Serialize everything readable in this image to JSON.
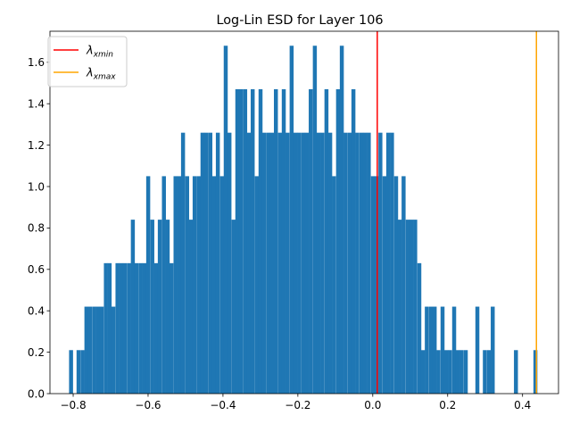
{
  "chart_data": {
    "type": "bar",
    "title": "Log-Lin ESD for Layer 106",
    "xlabel": "",
    "ylabel": "",
    "xlim": [
      -0.862,
      0.496
    ],
    "ylim": [
      0,
      1.75
    ],
    "bin_width": 0.0103,
    "bar_color": "#1f77b4",
    "x_ticks": [
      -0.8,
      -0.6,
      -0.4,
      -0.2,
      0.0,
      0.2,
      0.4
    ],
    "x_tick_labels": [
      "−0.8",
      "−0.6",
      "−0.4",
      "−0.2",
      "0.0",
      "0.2",
      "0.4"
    ],
    "y_ticks": [
      0.0,
      0.2,
      0.4,
      0.6,
      0.8,
      1.0,
      1.2,
      1.4,
      1.6
    ],
    "y_tick_labels": [
      "0.0",
      "0.2",
      "0.4",
      "0.6",
      "0.8",
      "1.0",
      "1.2",
      "1.4",
      "1.6"
    ],
    "bins": [
      {
        "x": -0.811,
        "y": 0.21
      },
      {
        "x": -0.801,
        "y": 0.0
      },
      {
        "x": -0.791,
        "y": 0.21
      },
      {
        "x": -0.78,
        "y": 0.21
      },
      {
        "x": -0.77,
        "y": 0.42
      },
      {
        "x": -0.76,
        "y": 0.42
      },
      {
        "x": -0.749,
        "y": 0.42
      },
      {
        "x": -0.739,
        "y": 0.42
      },
      {
        "x": -0.729,
        "y": 0.42
      },
      {
        "x": -0.718,
        "y": 0.63
      },
      {
        "x": -0.708,
        "y": 0.63
      },
      {
        "x": -0.698,
        "y": 0.42
      },
      {
        "x": -0.687,
        "y": 0.63
      },
      {
        "x": -0.677,
        "y": 0.63
      },
      {
        "x": -0.667,
        "y": 0.63
      },
      {
        "x": -0.656,
        "y": 0.63
      },
      {
        "x": -0.646,
        "y": 0.84
      },
      {
        "x": -0.636,
        "y": 0.63
      },
      {
        "x": -0.625,
        "y": 0.63
      },
      {
        "x": -0.615,
        "y": 0.63
      },
      {
        "x": -0.605,
        "y": 1.05
      },
      {
        "x": -0.594,
        "y": 0.84
      },
      {
        "x": -0.584,
        "y": 0.63
      },
      {
        "x": -0.574,
        "y": 0.84
      },
      {
        "x": -0.563,
        "y": 1.05
      },
      {
        "x": -0.553,
        "y": 0.84
      },
      {
        "x": -0.543,
        "y": 0.63
      },
      {
        "x": -0.532,
        "y": 1.05
      },
      {
        "x": -0.522,
        "y": 1.05
      },
      {
        "x": -0.512,
        "y": 1.26
      },
      {
        "x": -0.501,
        "y": 1.05
      },
      {
        "x": -0.491,
        "y": 0.84
      },
      {
        "x": -0.481,
        "y": 1.05
      },
      {
        "x": -0.47,
        "y": 1.05
      },
      {
        "x": -0.46,
        "y": 1.26
      },
      {
        "x": -0.45,
        "y": 1.26
      },
      {
        "x": -0.439,
        "y": 1.26
      },
      {
        "x": -0.429,
        "y": 1.05
      },
      {
        "x": -0.419,
        "y": 1.26
      },
      {
        "x": -0.408,
        "y": 1.05
      },
      {
        "x": -0.398,
        "y": 1.68
      },
      {
        "x": -0.388,
        "y": 1.26
      },
      {
        "x": -0.377,
        "y": 0.84
      },
      {
        "x": -0.367,
        "y": 1.47
      },
      {
        "x": -0.357,
        "y": 1.47
      },
      {
        "x": -0.346,
        "y": 1.47
      },
      {
        "x": -0.336,
        "y": 1.26
      },
      {
        "x": -0.326,
        "y": 1.47
      },
      {
        "x": -0.315,
        "y": 1.05
      },
      {
        "x": -0.305,
        "y": 1.47
      },
      {
        "x": -0.295,
        "y": 1.26
      },
      {
        "x": -0.284,
        "y": 1.26
      },
      {
        "x": -0.274,
        "y": 1.26
      },
      {
        "x": -0.264,
        "y": 1.47
      },
      {
        "x": -0.253,
        "y": 1.26
      },
      {
        "x": -0.243,
        "y": 1.47
      },
      {
        "x": -0.233,
        "y": 1.26
      },
      {
        "x": -0.222,
        "y": 1.68
      },
      {
        "x": -0.212,
        "y": 1.26
      },
      {
        "x": -0.202,
        "y": 1.26
      },
      {
        "x": -0.191,
        "y": 1.26
      },
      {
        "x": -0.181,
        "y": 1.26
      },
      {
        "x": -0.171,
        "y": 1.47
      },
      {
        "x": -0.16,
        "y": 1.68
      },
      {
        "x": -0.15,
        "y": 1.26
      },
      {
        "x": -0.14,
        "y": 1.26
      },
      {
        "x": -0.129,
        "y": 1.47
      },
      {
        "x": -0.119,
        "y": 1.26
      },
      {
        "x": -0.109,
        "y": 1.05
      },
      {
        "x": -0.098,
        "y": 1.47
      },
      {
        "x": -0.088,
        "y": 1.68
      },
      {
        "x": -0.078,
        "y": 1.26
      },
      {
        "x": -0.067,
        "y": 1.26
      },
      {
        "x": -0.057,
        "y": 1.47
      },
      {
        "x": -0.047,
        "y": 1.26
      },
      {
        "x": -0.036,
        "y": 1.26
      },
      {
        "x": -0.026,
        "y": 1.26
      },
      {
        "x": -0.016,
        "y": 1.26
      },
      {
        "x": -0.005,
        "y": 1.05
      },
      {
        "x": 0.005,
        "y": 1.05
      },
      {
        "x": 0.015,
        "y": 1.26
      },
      {
        "x": 0.026,
        "y": 1.05
      },
      {
        "x": 0.036,
        "y": 1.26
      },
      {
        "x": 0.046,
        "y": 1.26
      },
      {
        "x": 0.057,
        "y": 1.05
      },
      {
        "x": 0.067,
        "y": 0.84
      },
      {
        "x": 0.077,
        "y": 1.05
      },
      {
        "x": 0.088,
        "y": 0.84
      },
      {
        "x": 0.098,
        "y": 0.84
      },
      {
        "x": 0.108,
        "y": 0.84
      },
      {
        "x": 0.119,
        "y": 0.63
      },
      {
        "x": 0.129,
        "y": 0.21
      },
      {
        "x": 0.139,
        "y": 0.42
      },
      {
        "x": 0.15,
        "y": 0.42
      },
      {
        "x": 0.16,
        "y": 0.42
      },
      {
        "x": 0.17,
        "y": 0.21
      },
      {
        "x": 0.181,
        "y": 0.42
      },
      {
        "x": 0.191,
        "y": 0.21
      },
      {
        "x": 0.201,
        "y": 0.21
      },
      {
        "x": 0.212,
        "y": 0.42
      },
      {
        "x": 0.222,
        "y": 0.21
      },
      {
        "x": 0.232,
        "y": 0.21
      },
      {
        "x": 0.243,
        "y": 0.21
      },
      {
        "x": 0.253,
        "y": 0.0
      },
      {
        "x": 0.263,
        "y": 0.0
      },
      {
        "x": 0.274,
        "y": 0.42
      },
      {
        "x": 0.284,
        "y": 0.0
      },
      {
        "x": 0.294,
        "y": 0.21
      },
      {
        "x": 0.305,
        "y": 0.21
      },
      {
        "x": 0.315,
        "y": 0.42
      },
      {
        "x": 0.325,
        "y": 0.0
      },
      {
        "x": 0.336,
        "y": 0.0
      },
      {
        "x": 0.346,
        "y": 0.0
      },
      {
        "x": 0.356,
        "y": 0.0
      },
      {
        "x": 0.367,
        "y": 0.0
      },
      {
        "x": 0.377,
        "y": 0.21
      },
      {
        "x": 0.387,
        "y": 0.0
      },
      {
        "x": 0.398,
        "y": 0.0
      },
      {
        "x": 0.408,
        "y": 0.0
      },
      {
        "x": 0.418,
        "y": 0.0
      },
      {
        "x": 0.429,
        "y": 0.21
      }
    ],
    "vlines": [
      {
        "x": 0.012,
        "color": "#ff0000",
        "label": "λxmin",
        "symbol": "λ",
        "subscript": "xmin"
      },
      {
        "x": 0.437,
        "color": "#ffa500",
        "label": "λxmax",
        "symbol": "λ",
        "subscript": "xmax"
      }
    ],
    "legend": {
      "position": "upper-left"
    }
  }
}
